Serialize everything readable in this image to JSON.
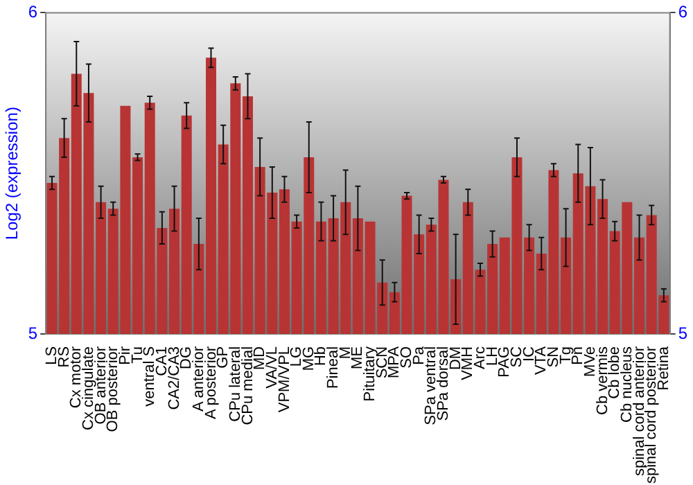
{
  "chart_data": {
    "type": "bar",
    "ylabel": "Log2 (expression)",
    "categories": [
      "LS",
      "RS",
      "Cx motor",
      "Cx cingulate",
      "OB anterior",
      "OB posterior",
      "Pir",
      "Tu",
      "ventral S",
      "CA1",
      "CA2/CA3",
      "DG",
      "A anterior",
      "A posterior",
      "GP",
      "CPu lateral",
      "CPu medial",
      "MD",
      "VA/VL",
      "VPM/VPL",
      "LG",
      "MG",
      "Hb",
      "Pineal",
      "M",
      "ME",
      "Pituitary",
      "SCN",
      "MPA",
      "SO",
      "Pa",
      "SPa ventral",
      "SPa dorsal",
      "DM",
      "VMH",
      "Arc",
      "LH",
      "PAG",
      "SC",
      "IC",
      "VTA",
      "SN",
      "Tg",
      "Pn",
      "MVe",
      "Cb vermis",
      "Cb lobe",
      "Cb nucleus",
      "spinal cord anterior",
      "spinal cord posterior",
      "Retina"
    ],
    "values": [
      5.47,
      5.61,
      5.81,
      5.75,
      5.41,
      5.39,
      5.71,
      5.55,
      5.72,
      5.33,
      5.39,
      5.68,
      5.28,
      5.86,
      5.59,
      5.78,
      5.74,
      5.52,
      5.44,
      5.45,
      5.35,
      5.55,
      5.35,
      5.36,
      5.41,
      5.36,
      5.35,
      5.16,
      5.13,
      5.43,
      5.31,
      5.34,
      5.48,
      5.17,
      5.41,
      5.2,
      5.28,
      5.3,
      5.55,
      5.3,
      5.25,
      5.51,
      5.3,
      5.5,
      5.46,
      5.42,
      5.32,
      5.41,
      5.3,
      5.37,
      5.12
    ],
    "errors": [
      0.02,
      0.06,
      0.1,
      0.09,
      0.05,
      0.02,
      null,
      0.01,
      0.02,
      0.05,
      0.07,
      0.04,
      0.08,
      0.03,
      0.06,
      0.02,
      0.07,
      0.09,
      0.08,
      0.04,
      0.02,
      0.11,
      0.06,
      0.07,
      0.1,
      0.1,
      null,
      0.07,
      0.03,
      0.01,
      0.06,
      0.02,
      0.01,
      0.14,
      0.04,
      0.02,
      0.04,
      null,
      0.06,
      0.04,
      0.05,
      0.02,
      0.09,
      0.09,
      0.12,
      0.06,
      0.03,
      null,
      0.07,
      0.03,
      0.02
    ],
    "color": "#b83434",
    "ylim": [
      5,
      6
    ],
    "yticks": [
      5,
      6
    ],
    "y2lim": [
      5,
      6
    ],
    "y2ticks": [
      5,
      6
    ],
    "grid": false
  }
}
